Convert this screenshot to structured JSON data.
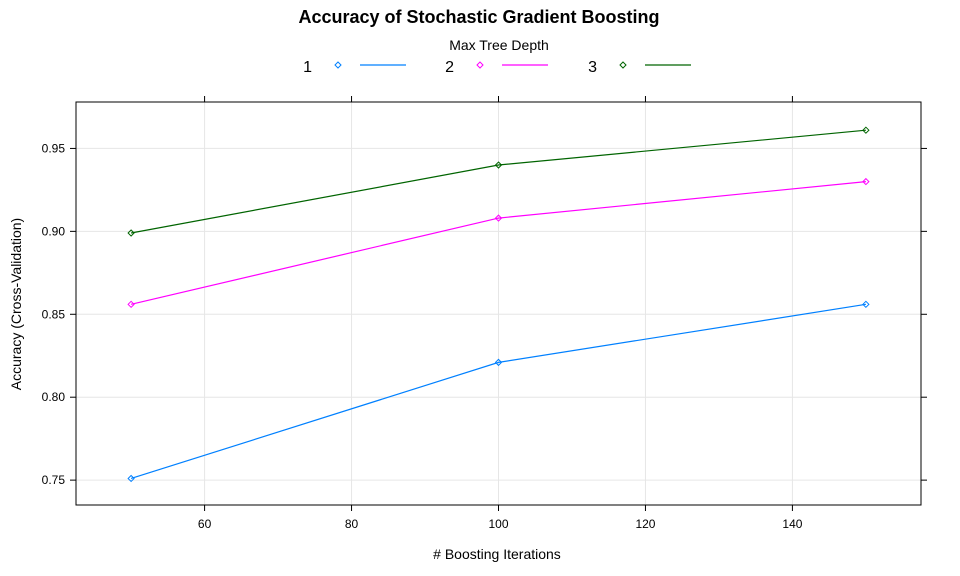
{
  "chart_data": {
    "type": "line",
    "title": "Accuracy of Stochastic Gradient Boosting",
    "xlabel": "# Boosting Iterations",
    "ylabel": "Accuracy (Cross-Validation)",
    "legend_title": "Max Tree Depth",
    "legend_position": "top",
    "grid": true,
    "xlim": [
      42.5,
      157.5
    ],
    "ylim": [
      0.735,
      0.978
    ],
    "xticks": [
      60,
      80,
      100,
      120,
      140
    ],
    "xtick_labels": [
      "60",
      "80",
      "100",
      "120",
      "140"
    ],
    "yticks": [
      0.75,
      0.8,
      0.85,
      0.9,
      0.95
    ],
    "ytick_labels": [
      "0.75",
      "0.80",
      "0.85",
      "0.90",
      "0.95"
    ],
    "x": [
      50,
      100,
      150
    ],
    "series": [
      {
        "name": "1",
        "color": "#0080ff",
        "values": [
          0.751,
          0.821,
          0.856
        ]
      },
      {
        "name": "2",
        "color": "#ff00ff",
        "values": [
          0.856,
          0.908,
          0.93
        ]
      },
      {
        "name": "3",
        "color": "#006400",
        "values": [
          0.899,
          0.94,
          0.961
        ]
      }
    ]
  }
}
